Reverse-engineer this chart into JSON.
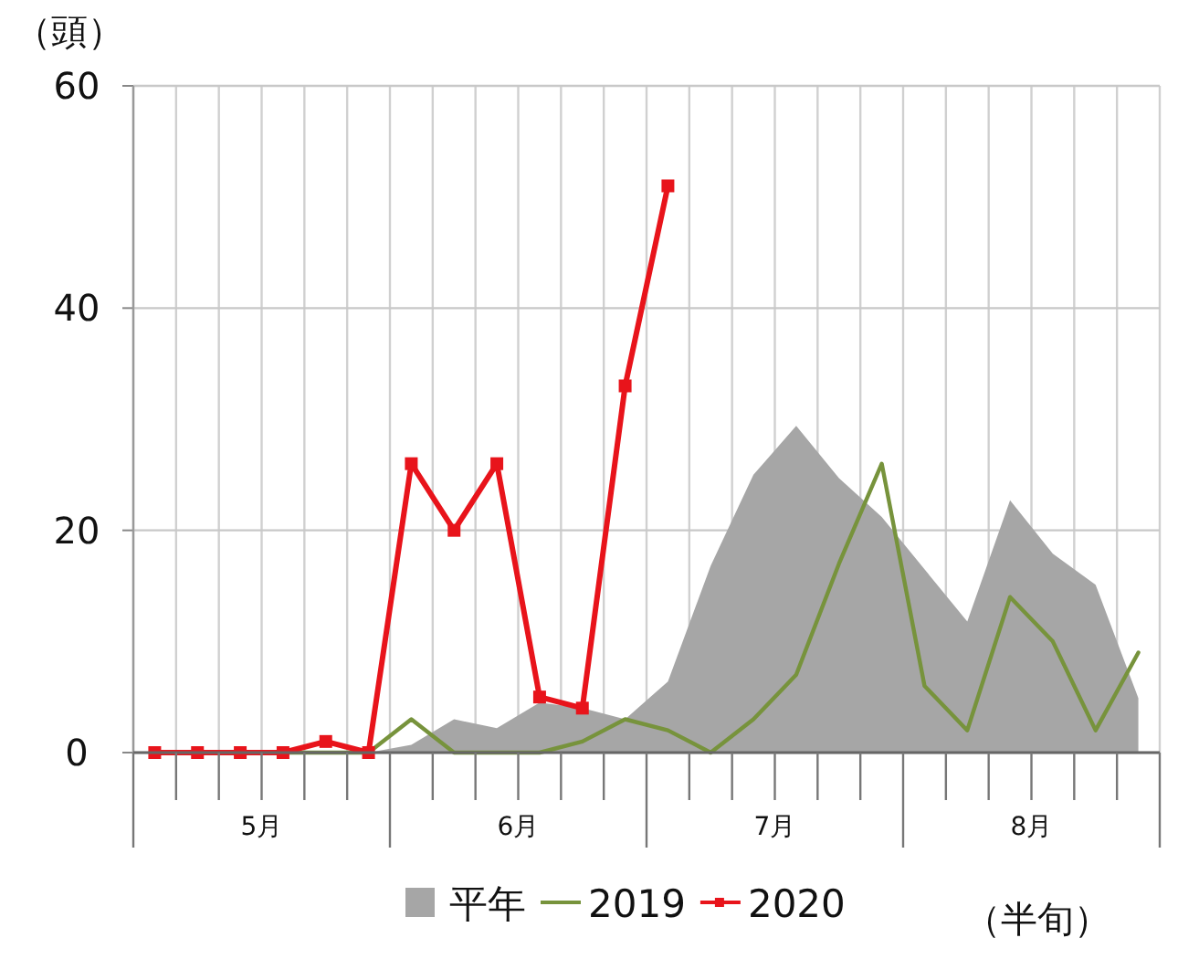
{
  "chart_data": {
    "type": "line",
    "ylabel": "（頭）",
    "xlabel": "（半旬）",
    "categories": [
      null,
      null,
      null,
      null,
      null,
      null,
      null,
      null,
      null,
      null,
      null,
      null,
      null,
      null,
      null,
      null,
      null,
      null,
      null,
      null,
      null,
      null,
      null,
      null
    ],
    "annotations": [
      "5月",
      "6月",
      "7月",
      "8月"
    ],
    "ylim": [
      0,
      60
    ],
    "yticks": [
      0,
      20,
      40,
      60
    ],
    "grid": true,
    "legend": "bottom",
    "series": [
      {
        "name": "平年",
        "type": "area",
        "color": "#a6a6a6",
        "values": [
          0,
          0,
          0,
          0,
          0,
          0,
          0.7,
          3,
          2.2,
          4.5,
          4,
          3,
          6.4,
          16.8,
          25,
          29.4,
          24.7,
          21.2,
          16.5,
          11.8,
          22.7,
          17.9,
          15.1,
          4.9
        ]
      },
      {
        "name": "2019",
        "type": "line",
        "color": "#77933c",
        "values": [
          0,
          0,
          0,
          0,
          0,
          0,
          3,
          0,
          0,
          0,
          1,
          3,
          2,
          0,
          3,
          7,
          17,
          26,
          6,
          2,
          14,
          10,
          2,
          9
        ]
      },
      {
        "name": "2020",
        "type": "line",
        "color": "#e8141b",
        "marker": "square",
        "values": [
          0,
          0,
          0,
          0,
          1,
          0,
          26,
          20,
          26,
          5,
          4,
          33,
          51,
          null,
          null,
          null,
          null,
          null,
          null,
          null,
          null,
          null,
          null,
          null
        ]
      }
    ]
  }
}
